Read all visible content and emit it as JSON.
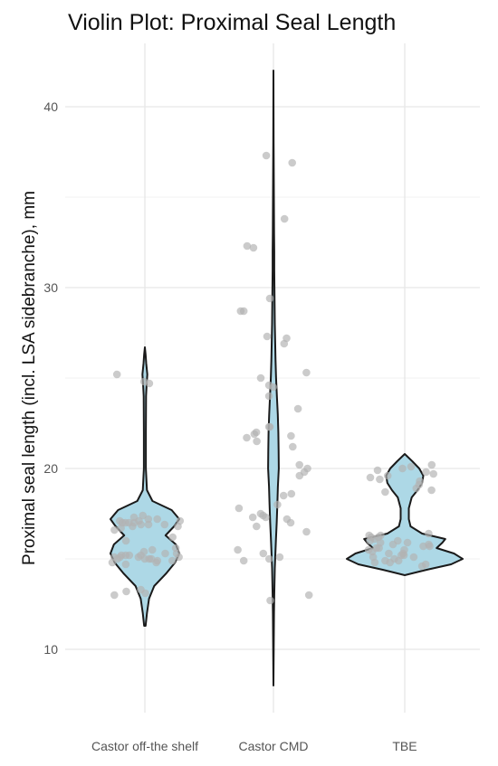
{
  "chart_data": {
    "type": "violin",
    "title": "Violin Plot: Proximal Seal Length",
    "xlabel": "",
    "ylabel": "Proximal seal length (incl. LSA sidebranche), mm",
    "categories": [
      "Castor off-the shelf",
      "Castor CMD",
      "TBE"
    ],
    "ylim": [
      6.5,
      43.5
    ],
    "yticks": [
      10,
      20,
      30,
      40
    ],
    "grid": true,
    "violin_fill": "#add8e6",
    "point_color": "#b3b3b3",
    "groups": [
      {
        "category": "Castor off-the shelf",
        "min": 11.3,
        "max": 26.7,
        "density_profile": [
          [
            11.3,
            0.02
          ],
          [
            12.0,
            0.06
          ],
          [
            12.8,
            0.12
          ],
          [
            13.5,
            0.27
          ],
          [
            14.2,
            0.62
          ],
          [
            14.8,
            0.88
          ],
          [
            15.3,
            1.0
          ],
          [
            15.8,
            0.9
          ],
          [
            16.3,
            0.6
          ],
          [
            16.8,
            0.85
          ],
          [
            17.2,
            1.0
          ],
          [
            17.7,
            0.78
          ],
          [
            18.2,
            0.22
          ],
          [
            18.8,
            0.06
          ],
          [
            20.0,
            0.03
          ],
          [
            22.0,
            0.03
          ],
          [
            24.0,
            0.035
          ],
          [
            24.6,
            0.05
          ],
          [
            25.2,
            0.07
          ],
          [
            25.8,
            0.04
          ],
          [
            26.3,
            0.02
          ],
          [
            26.7,
            0.0
          ]
        ],
        "points": [
          24.8,
          24.7,
          25.2,
          13.2,
          13.3,
          13.1,
          13.0,
          14.9,
          15.0,
          15.1,
          15.2,
          15.3,
          14.8,
          15.1,
          15.0,
          15.2,
          14.9,
          15.1,
          15.0,
          15.4,
          15.2,
          14.8,
          15.3,
          15.1,
          15.0,
          15.2,
          16.8,
          17.0,
          17.1,
          16.9,
          17.2,
          17.0,
          16.7,
          17.1,
          16.9,
          17.0,
          17.2,
          16.8,
          17.1,
          16.9,
          17.0,
          17.3,
          16.6,
          15.6,
          16.0,
          16.2,
          17.4,
          14.7,
          15.5
        ]
      },
      {
        "category": "Castor CMD",
        "min": 8.0,
        "max": 42.0,
        "density_profile": [
          [
            8.0,
            0.0
          ],
          [
            10.0,
            0.03
          ],
          [
            12.0,
            0.06
          ],
          [
            13.0,
            0.1
          ],
          [
            14.5,
            0.16
          ],
          [
            16.0,
            0.28
          ],
          [
            17.0,
            0.38
          ],
          [
            18.0,
            0.45
          ],
          [
            19.0,
            0.52
          ],
          [
            20.0,
            0.62
          ],
          [
            21.0,
            0.6
          ],
          [
            22.0,
            0.57
          ],
          [
            23.0,
            0.5
          ],
          [
            24.0,
            0.4
          ],
          [
            25.0,
            0.3
          ],
          [
            26.0,
            0.24
          ],
          [
            27.0,
            0.2
          ],
          [
            28.0,
            0.16
          ],
          [
            29.0,
            0.14
          ],
          [
            30.0,
            0.12
          ],
          [
            31.0,
            0.1
          ],
          [
            32.0,
            0.09
          ],
          [
            33.0,
            0.07
          ],
          [
            34.0,
            0.06
          ],
          [
            36.0,
            0.04
          ],
          [
            38.0,
            0.025
          ],
          [
            40.0,
            0.015
          ],
          [
            42.0,
            0.0
          ]
        ],
        "points": [
          37.3,
          36.9,
          33.8,
          32.3,
          32.2,
          29.4,
          28.7,
          28.7,
          27.3,
          27.2,
          26.9,
          25.3,
          25.0,
          24.6,
          24.5,
          24.0,
          23.3,
          22.3,
          22.3,
          22.0,
          21.9,
          21.8,
          21.7,
          21.5,
          21.2,
          20.2,
          20.0,
          19.8,
          19.6,
          18.6,
          18.5,
          18.0,
          17.8,
          17.5,
          17.4,
          17.3,
          17.3,
          17.2,
          17.0,
          16.8,
          16.5,
          15.5,
          15.3,
          15.1,
          15.0,
          14.9,
          13.0,
          12.7
        ]
      },
      {
        "category": "TBE",
        "min": 14.1,
        "max": 20.8,
        "density_profile": [
          [
            14.1,
            0.0
          ],
          [
            14.4,
            0.38
          ],
          [
            14.7,
            0.8
          ],
          [
            15.0,
            1.0
          ],
          [
            15.3,
            0.85
          ],
          [
            15.6,
            0.55
          ],
          [
            15.9,
            0.65
          ],
          [
            16.1,
            0.7
          ],
          [
            16.4,
            0.3
          ],
          [
            16.8,
            0.1
          ],
          [
            17.2,
            0.07
          ],
          [
            17.8,
            0.07
          ],
          [
            18.4,
            0.12
          ],
          [
            18.8,
            0.22
          ],
          [
            19.2,
            0.3
          ],
          [
            19.6,
            0.32
          ],
          [
            20.0,
            0.25
          ],
          [
            20.4,
            0.13
          ],
          [
            20.8,
            0.0
          ]
        ],
        "points": [
          20.2,
          20.1,
          20.0,
          19.9,
          19.8,
          19.7,
          19.6,
          19.5,
          19.4,
          19.3,
          19.1,
          18.9,
          18.8,
          18.7,
          16.4,
          16.3,
          16.2,
          16.1,
          16.0,
          15.9,
          15.8,
          15.7,
          15.6,
          15.5,
          15.4,
          15.3,
          15.2,
          15.1,
          15.0,
          14.9,
          14.8,
          14.7,
          16.2,
          15.9,
          15.5,
          15.1,
          14.8,
          16.0,
          15.6,
          15.3,
          14.9,
          16.3,
          15.7,
          15.2,
          14.6,
          15.8
        ]
      }
    ]
  }
}
